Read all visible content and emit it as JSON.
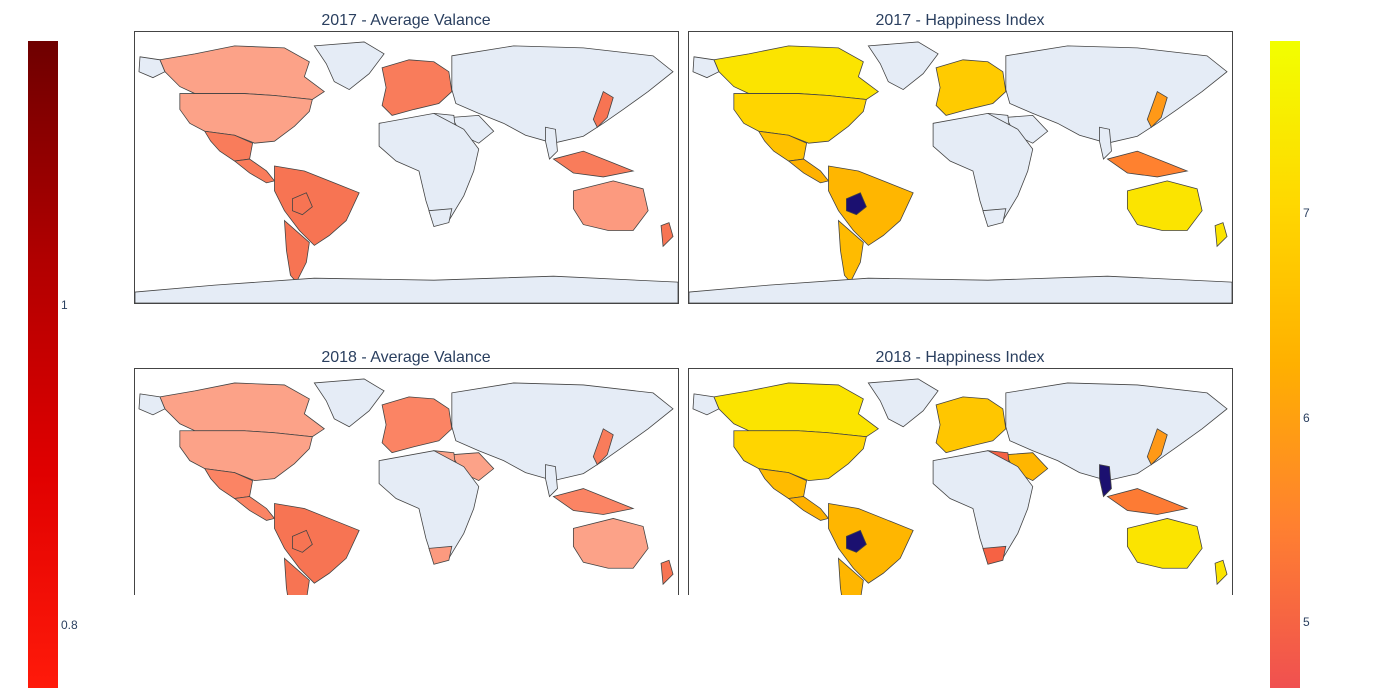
{
  "maps": [
    {
      "title": "2017 - Average Valance",
      "scale": "valence",
      "regions": {
        "canada": 0.78,
        "usa": 0.78,
        "mexico": 0.88,
        "central_america": 0.88,
        "south_america": 0.9,
        "argentina": 0.9,
        "europe": 0.88,
        "japan": 0.9,
        "se_asia": 0.88,
        "australia": 0.8,
        "nz": 0.9,
        "bolivia": 0.9,
        "ne_africa": null,
        "south_africa": null,
        "vietnam": null,
        "arabia": null
      }
    },
    {
      "title": "2017 - Happiness Index",
      "scale": "happiness",
      "regions": {
        "canada": 7.3,
        "usa": 7.0,
        "mexico": 6.6,
        "central_america": 6.3,
        "south_america": 6.4,
        "argentina": 6.5,
        "europe": 6.8,
        "japan": 5.9,
        "se_asia": 5.5,
        "australia": 7.3,
        "nz": 7.3,
        "bolivia": "highlight",
        "ne_africa": null,
        "south_africa": null,
        "vietnam": null,
        "arabia": null
      }
    },
    {
      "title": "2018 - Average Valance",
      "scale": "valence",
      "regions": {
        "canada": 0.78,
        "usa": 0.78,
        "mexico": 0.86,
        "central_america": 0.86,
        "south_america": 0.9,
        "argentina": 0.9,
        "europe": 0.86,
        "japan": 0.88,
        "se_asia": 0.86,
        "australia": 0.78,
        "nz": 0.9,
        "bolivia": 0.9,
        "ne_africa": 0.78,
        "south_africa": 0.8,
        "vietnam": null,
        "arabia": 0.78
      }
    },
    {
      "title": "2018 - Happiness Index",
      "scale": "happiness",
      "regions": {
        "canada": 7.3,
        "usa": 7.0,
        "mexico": 6.5,
        "central_america": 6.3,
        "south_america": 6.4,
        "argentina": 6.4,
        "europe": 6.7,
        "japan": 5.9,
        "se_asia": 5.4,
        "australia": 7.3,
        "nz": 7.3,
        "bolivia": "highlight",
        "ne_africa": 5.0,
        "south_africa": 5.0,
        "vietnam": "highlight",
        "arabia": 6.4
      }
    }
  ],
  "colorbars": {
    "valence": {
      "ticks": [
        "1",
        "0.8"
      ],
      "tick_values": [
        1.0,
        0.8
      ],
      "range": [
        0.74,
        1.14
      ],
      "colors": [
        "#ff1a0a",
        "#e00000",
        "#b00000",
        "#6e0000"
      ]
    },
    "happiness": {
      "ticks": [
        "7",
        "6",
        "5"
      ],
      "tick_values": [
        7,
        6,
        5
      ],
      "range": [
        4.7,
        7.85
      ],
      "colors": [
        "#f05050",
        "#ff8030",
        "#ffb000",
        "#ffd800",
        "#f2ff00"
      ]
    }
  },
  "colors": {
    "no_data": "#e5ecf6",
    "highlight": "#1b1070",
    "border": "#444444"
  }
}
